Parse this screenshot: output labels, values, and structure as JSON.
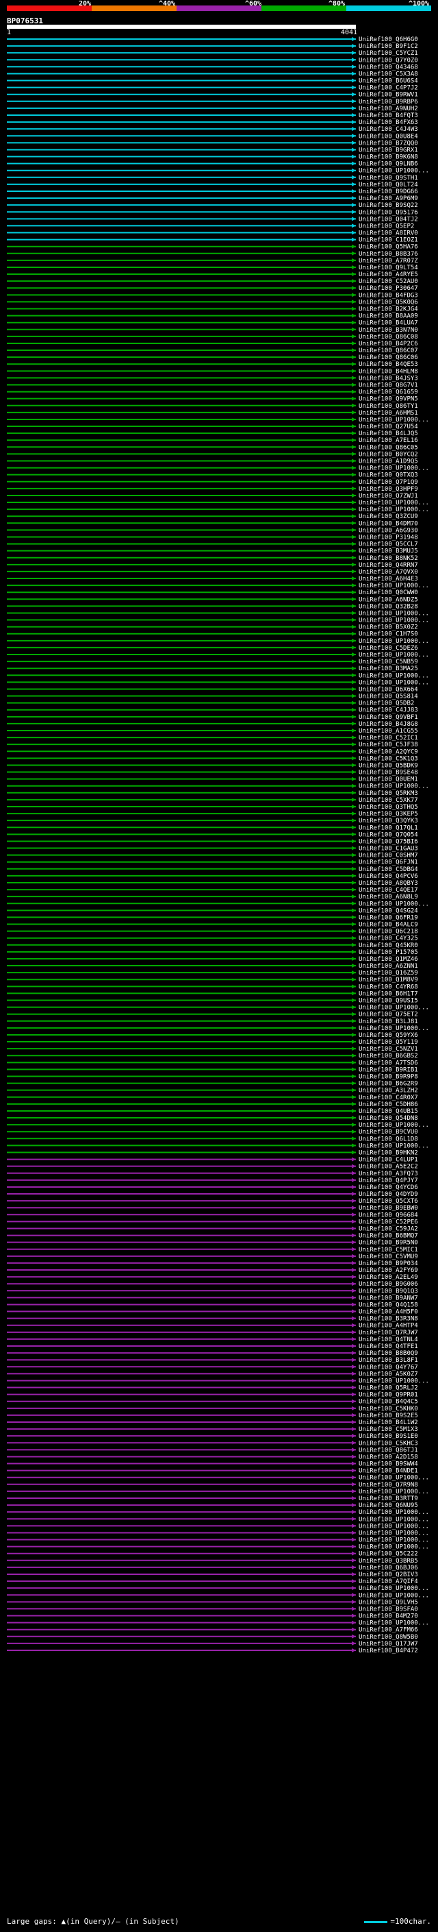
{
  "query": {
    "name": "BP076531",
    "start": "1",
    "end": "4041"
  },
  "scale": {
    "labels": [
      "20%",
      "^40%",
      "^60%",
      "^80%",
      "^100%"
    ],
    "colors": [
      "#ee1111",
      "#ee7700",
      "#9922aa",
      "#00aa00",
      "#00ccdd"
    ]
  },
  "footer": {
    "gaps_text": "Large gaps: ▲(in Query)/– (in Subject)",
    "legend_text": "=100char."
  },
  "chart_data": {
    "type": "alignment",
    "query_length": 4041,
    "hits": [
      "UniRef100_Q6H6G0",
      "UniRef100_B9F1C2",
      "UniRef100_C5YCZ1",
      "UniRef100_Q7Y0Z0",
      "UniRef100_Q43468",
      "UniRef100_C5X3A8",
      "UniRef100_B6U6S4",
      "UniRef100_C4P7J2",
      "UniRef100_B9RWV1",
      "UniRef100_B9RBP6",
      "UniRef100_A9NUH2",
      "UniRef100_B4FQT3",
      "UniRef100_B4FX63",
      "UniRef100_C4J4W3",
      "UniRef100_Q0U8E4",
      "UniRef100_B7ZQQ0",
      "UniRef100_B9GRX1",
      "UniRef100_B9K6N8",
      "UniRef100_Q9LNB6",
      "UniRef100_UP1000...",
      "UniRef100_Q9STH1",
      "UniRef100_Q0LT24",
      "UniRef100_B9DG66",
      "UniRef100_A9P6M9",
      "UniRef100_B9SQ22",
      "UniRef100_Q95176",
      "UniRef100_Q04TJ2",
      "UniRef100_Q5EP2",
      "UniRef100_A8IRV0",
      "UniRef100_C1EOZ1",
      "UniRef100_Q5HA76",
      "UniRef100_B8B376",
      "UniRef100_A7R07Z",
      "UniRef100_Q9LT54",
      "UniRef100_A4RYE5",
      "UniRef100_C52AU0",
      "UniRef100_P30647",
      "UniRef100_B4FDG3",
      "UniRef100_Q5K0Q6",
      "UniRef100_B2KJG4",
      "UniRef100_B8AA09",
      "UniRef100_B4LUA7",
      "UniRef100_B3N7N0",
      "UniRef100_Q86C08",
      "UniRef100_B4P2C6",
      "UniRef100_Q86C07",
      "UniRef100_Q86C06",
      "UniRef100_B4QE53",
      "UniRef100_B4HLM8",
      "UniRef100_B4JSY3",
      "UniRef100_Q8G7V1",
      "UniRef100_Q61659",
      "UniRef100_Q9VPN5",
      "UniRef100_Q86TY1",
      "UniRef100_A6HMS1",
      "UniRef100_UP1000...",
      "UniRef100_Q27U54",
      "UniRef100_B4LJQ5",
      "UniRef100_A7EL16",
      "UniRef100_Q86C05",
      "UniRef100_B0YCQ2",
      "UniRef100_A1D9Q5",
      "UniRef100_UP1000...",
      "UniRef100_Q0TXQ3",
      "UniRef100_Q7P1Q9",
      "UniRef100_Q3HPF9",
      "UniRef100_Q7ZWJ1",
      "UniRef100_UP1000...",
      "UniRef100_UP1000...",
      "UniRef100_Q3ZCU9",
      "UniRef100_B4DM70",
      "UniRef100_A6G930",
      "UniRef100_P31948",
      "UniRef100_Q5CCL7",
      "UniRef100_B3MUJ5",
      "UniRef100_B8NK52",
      "UniRef100_Q4RRN7",
      "UniRef100_A7QVX0",
      "UniRef100_A6H4E3",
      "UniRef100_UP1000...",
      "UniRef100_Q0CWW0",
      "UniRef100_A6NDZ5",
      "UniRef100_Q32B28",
      "UniRef100_UP1000...",
      "UniRef100_UP1000...",
      "UniRef100_B5X0Z2",
      "UniRef100_C1H7S0",
      "UniRef100_UP1000...",
      "UniRef100_C5DEZ6",
      "UniRef100_UP1000...",
      "UniRef100_C5NB59",
      "UniRef100_B3MA25",
      "UniRef100_UP1000...",
      "UniRef100_UP1000...",
      "UniRef100_Q6X664",
      "UniRef100_Q5S814",
      "UniRef100_Q5DB2",
      "UniRef100_C4JJ83",
      "UniRef100_Q9VBF1",
      "UniRef100_B4J8G8",
      "UniRef100_A1CG55",
      "UniRef100_C52IC1",
      "UniRef100_C5JF38",
      "UniRef100_A2QYC9",
      "UniRef100_C5K1Q3",
      "UniRef100_Q5BDK9",
      "UniRef100_B9SE48",
      "UniRef100_Q0UEM1",
      "UniRef100_UP1000...",
      "UniRef100_Q5RKM3",
      "UniRef100_C5XK77",
      "UniRef100_Q3THQ5",
      "UniRef100_Q3KEP5",
      "UniRef100_Q3QYK3",
      "UniRef100_Q17QL1",
      "UniRef100_Q7Q054",
      "UniRef100_Q75BI6",
      "UniRef100_C1GAU3",
      "UniRef100_C0SHM7",
      "UniRef100_Q6FJN1",
      "UniRef100_C5DBG4",
      "UniRef100_Q4PCV6",
      "UniRef100_A8QBY3",
      "UniRef100_C4QE17",
      "UniRef100_A6N8L9",
      "UniRef100_UP1000...",
      "UniRef100_Q4SG24",
      "UniRef100_Q6FR19",
      "UniRef100_B4ALC9",
      "UniRef100_Q6C218",
      "UniRef100_C4Y325",
      "UniRef100_Q45KR0",
      "UniRef100_P15705",
      "UniRef100_Q1MZ46",
      "UniRef100_A6ZNN1",
      "UniRef100_Q16Z59",
      "UniRef100_Q1M8V9",
      "UniRef100_C4YR68",
      "UniRef100_B6H1T7",
      "UniRef100_Q9USI5",
      "UniRef100_UP1000...",
      "UniRef100_Q75ET2",
      "UniRef100_B3LJ81",
      "UniRef100_UP1000...",
      "UniRef100_Q59YX6",
      "UniRef100_Q5Y119",
      "UniRef100_C5NZV1",
      "UniRef100_B6GBS2",
      "UniRef100_A7TSD6",
      "UniRef100_B9RIB1",
      "UniRef100_B9R9P8",
      "UniRef100_B6G2R9",
      "UniRef100_A3LZH2",
      "UniRef100_C4R0X7",
      "UniRef100_C5DH86",
      "UniRef100_Q4UB15",
      "UniRef100_Q54DN8",
      "UniRef100_UP1000...",
      "UniRef100_B9CVU0",
      "UniRef100_Q6L1D8",
      "UniRef100_UP1000...",
      "UniRef100_B9HKN2",
      "UniRef100_C4LUP1",
      "UniRef100_A5E2C2",
      "UniRef100_A3FQ73",
      "UniRef100_Q4PJY7",
      "UniRef100_Q4YCD6",
      "UniRef100_Q4DYD9",
      "UniRef100_Q5CXT6",
      "UniRef100_B9EBW0",
      "UniRef100_Q96684",
      "UniRef100_C52PE6",
      "UniRef100_C59JA2",
      "UniRef100_B6BMQ7",
      "UniRef100_B9R5N0",
      "UniRef100_C5MIC1",
      "UniRef100_C5VMU9",
      "UniRef100_B9P034",
      "UniRef100_A2FY69",
      "UniRef100_A2EL49",
      "UniRef100_B9G006",
      "UniRef100_B9Q1Q3",
      "UniRef100_B9ANW7",
      "UniRef100_Q4Q158",
      "UniRef100_A4H5F0",
      "UniRef100_B3R3N8",
      "UniRef100_A4HTP4",
      "UniRef100_Q7RJW7",
      "UniRef100_Q4TNL4",
      "UniRef100_Q4TFE1",
      "UniRef100_B8B0Q9",
      "UniRef100_B3L8F1",
      "UniRef100_Q4Y767",
      "UniRef100_A5K0Z7",
      "UniRef100_UP1000...",
      "UniRef100_Q5RLJ2",
      "UniRef100_Q9PR01",
      "UniRef100_B4Q4C5",
      "UniRef100_C5KHK0",
      "UniRef100_B9S2E5",
      "UniRef100_B4L1W2",
      "UniRef100_C5M1X3",
      "UniRef100_B9S1E0",
      "UniRef100_C5KHC3",
      "UniRef100_Q86TJ1",
      "UniRef100_A2D158",
      "UniRef100_B9SWW4",
      "UniRef100_B4NDE1",
      "UniRef100_UP1000...",
      "UniRef100_Q7R9N8",
      "UniRef100_UP1000...",
      "UniRef100_B3RTT9",
      "UniRef100_Q6NU95",
      "UniRef100_UP1000...",
      "UniRef100_UP1000...",
      "UniRef100_UP1000...",
      "UniRef100_UP1000...",
      "UniRef100_UP1000...",
      "UniRef100_UP1000...",
      "UniRef100_Q5C222",
      "UniRef100_Q3BRB5",
      "UniRef100_Q6BJ06",
      "UniRef100_Q2BIV3",
      "UniRef100_A7QIF4",
      "UniRef100_UP1000...",
      "UniRef100_UP1000...",
      "UniRef100_Q9LVH5",
      "UniRef100_B9SFA0",
      "UniRef100_B4M270",
      "UniRef100_UP1000...",
      "UniRef100_A7FM66",
      "UniRef100_Q8W5B0",
      "UniRef100_Q17JW7",
      "UniRef100_B4P472"
    ],
    "score_colors": [
      "#00ccdd",
      "#00aa00",
      "#9922aa"
    ],
    "color_bands": [
      [
        0,
        30,
        0
      ],
      [
        30,
        162,
        1
      ],
      [
        162,
        224,
        2
      ]
    ],
    "hit_end": 4041,
    "xlim": [
      1,
      4041
    ]
  }
}
